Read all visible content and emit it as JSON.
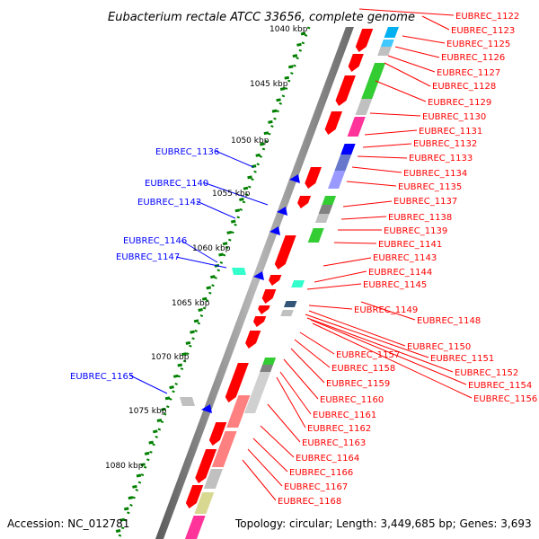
{
  "title": "Eubacterium rectale ATCC 33656, complete genome",
  "accession": "Accession: NC_012781",
  "topology": "Topology: circular; Length: 3,449,685 bp; Genes: 3,693",
  "colors": {
    "forward": "#ff0000",
    "reverse": "#0000ff",
    "ruler": "#008000",
    "backbone": "#808080"
  },
  "ticks": [
    "1040 kbp",
    "1045 kbp",
    "1050 kbp",
    "1055 kbp",
    "1060 kbp",
    "1065 kbp",
    "1070 kbp",
    "1075 kbp",
    "1080 kbp"
  ],
  "left_labels": [
    "EUBREC_1136",
    "EUBREC_1140",
    "EUBREC_1142",
    "EUBREC_1146",
    "EUBREC_1147",
    "EUBREC_1165"
  ],
  "right_labels": [
    "EUBREC_1122",
    "EUBREC_1123",
    "EUBREC_1125",
    "EUBREC_1126",
    "EUBREC_1127",
    "EUBREC_1128",
    "EUBREC_1129",
    "EUBREC_1130",
    "EUBREC_1131",
    "EUBREC_1132",
    "EUBREC_1133",
    "EUBREC_1134",
    "EUBREC_1135",
    "EUBREC_1137",
    "EUBREC_1138",
    "EUBREC_1139",
    "EUBREC_1141",
    "EUBREC_1143",
    "EUBREC_1144",
    "EUBREC_1145",
    "EUBREC_1149",
    "EUBREC_1148",
    "EUBREC_1150",
    "EUBREC_1151",
    "EUBREC_1152",
    "EUBREC_1154",
    "EUBREC_1156",
    "EUBREC_1157",
    "EUBREC_1158",
    "EUBREC_1159",
    "EUBREC_1160",
    "EUBREC_1161",
    "EUBREC_1162",
    "EUBREC_1163",
    "EUBREC_1164",
    "EUBREC_1166",
    "EUBREC_1167",
    "EUBREC_1168"
  ]
}
